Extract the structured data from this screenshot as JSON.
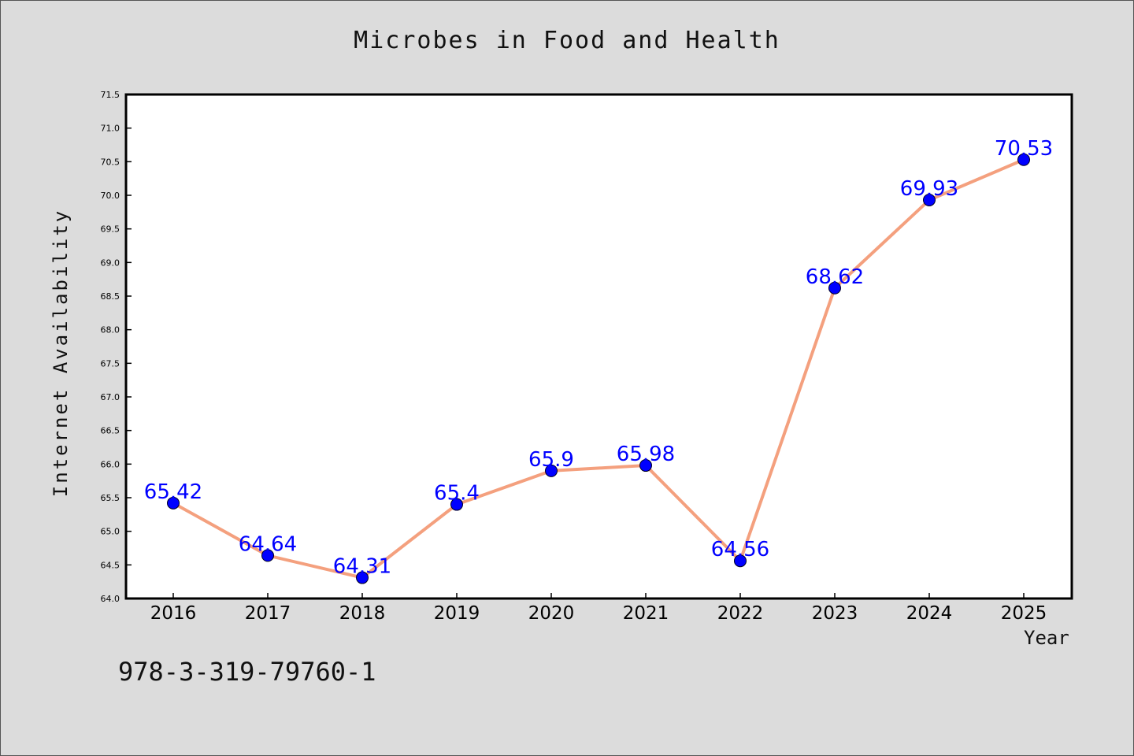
{
  "chart_data": {
    "type": "line",
    "title": "Microbes in Food and Health",
    "xlabel": "Year",
    "ylabel": "Internet Availability",
    "x": [
      "2016",
      "2017",
      "2018",
      "2019",
      "2020",
      "2021",
      "2022",
      "2023",
      "2024",
      "2025"
    ],
    "series": [
      {
        "values": [
          65.42,
          64.64,
          64.31,
          65.4,
          65.9,
          65.98,
          64.56,
          68.62,
          69.93,
          70.53
        ],
        "data_labels": [
          "65.42",
          "64.64",
          "64.31",
          "65.4",
          "65.9",
          "65.98",
          "64.56",
          "68.62",
          "69.93",
          "70.53"
        ]
      }
    ],
    "ylim": [
      64.0,
      71.5
    ],
    "yticks": [
      "64.0",
      "64.5",
      "65.0",
      "65.5",
      "66.0",
      "66.5",
      "67.0",
      "67.5",
      "68.0",
      "68.5",
      "69.0",
      "69.5",
      "70.0",
      "70.5",
      "71.0",
      "71.5"
    ],
    "grid": false,
    "line_color": "#f4a07e",
    "marker_color": "#0000ff",
    "label_color": "#0000ff"
  },
  "footer_text": "978-3-319-79760-1"
}
